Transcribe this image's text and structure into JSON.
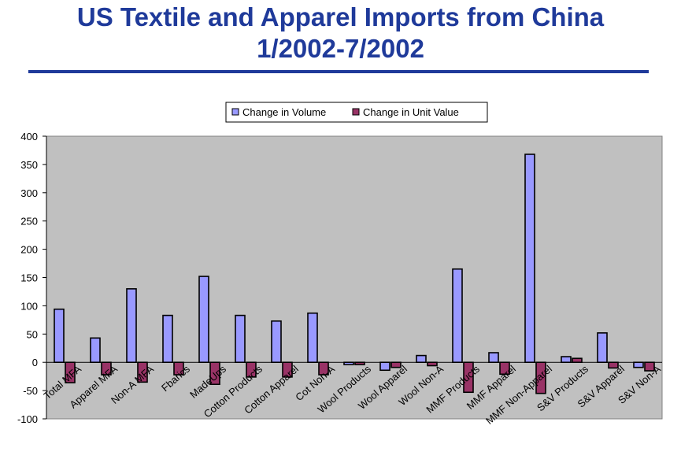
{
  "chart_data": {
    "type": "bar",
    "title_line1": "US Textile and Apparel Imports from China",
    "title_line2": "1/2002-7/2002",
    "xlabel": "",
    "ylabel": "",
    "ylim": [
      -100,
      400
    ],
    "yticks": [
      400,
      350,
      300,
      250,
      200,
      150,
      100,
      50,
      0,
      -50,
      -100
    ],
    "grid": false,
    "legend_position": "top-center",
    "categories": [
      "Total MFA",
      "Apparel MFA",
      "Non-A MFA",
      "Fbarics",
      "MadeUps",
      "Cotton Products",
      "Cotton Apparel",
      "Cot Non-A",
      "Wool Products",
      "Wool Apparel",
      "Wool Non-A",
      "MMF Products",
      "MMF Apparel",
      "MMF Non-Apparel",
      "S&V Products",
      "S&V Apparel",
      "S&V Non-A"
    ],
    "series": [
      {
        "name": "Change in Volume",
        "color": "#9999ff",
        "values": [
          94,
          43,
          130,
          83,
          152,
          83,
          73,
          87,
          -4,
          -14,
          12,
          165,
          17,
          368,
          10,
          52,
          -9
        ]
      },
      {
        "name": "Change in Unit Value",
        "color": "#993366",
        "values": [
          -36,
          -22,
          -35,
          -22,
          -39,
          -26,
          -26,
          -22,
          -4,
          -9,
          -6,
          -53,
          -21,
          -55,
          7,
          -10,
          -15
        ]
      }
    ],
    "plot_bg": "#c0c0c0"
  }
}
